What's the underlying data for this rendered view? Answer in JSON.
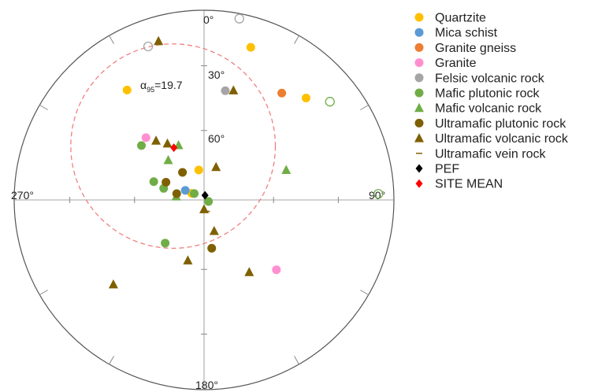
{
  "chart_data": {
    "type": "scatter",
    "projection": "equal-area stereonet",
    "axis_labels": {
      "north": "0°",
      "east": "90°",
      "south": "180°",
      "west": "270°",
      "inc30": "30°",
      "inc60": "60°"
    },
    "alpha95": {
      "symbol": "α",
      "sub": "95",
      "text": "=19.7",
      "value": 19.7
    },
    "colors": {
      "circle": "#555555",
      "ticks": "#888888",
      "alpha95_ring": "#f08080",
      "yellow": "#ffc000",
      "blue": "#5b9bd5",
      "orange": "#ed7d31",
      "pink": "#ff8fd0",
      "gray": "#a5a5a5",
      "green": "#70ad47",
      "brown": "#7f6000",
      "black": "#000000",
      "red": "#ff0000"
    },
    "series": [
      {
        "name": "Quartzite",
        "marker": "circle",
        "color": "#ffc000",
        "points": [
          [
            17,
            17
          ],
          [
            45,
            25
          ],
          [
            325,
            30
          ],
          [
            298,
            84
          ],
          [
            350,
            77
          ]
        ]
      },
      {
        "name": "Mica schist",
        "marker": "circle",
        "color": "#5b9bd5",
        "points": [
          [
            297,
            81
          ]
        ]
      },
      {
        "name": "Granite gneiss",
        "marker": "circle",
        "color": "#ed7d31",
        "points": [
          [
            36,
            31
          ]
        ]
      },
      {
        "name": "Granite",
        "marker": "circle",
        "color": "#ff8fd0",
        "points": [
          [
            317,
            53
          ],
          [
            134,
            46
          ]
        ]
      },
      {
        "name": "Felsic volcanic rock",
        "marker": "circle",
        "color": "#a5a5a5",
        "points": [
          [
            11,
            41
          ]
        ],
        "open_points": [
          [
            340,
            15
          ],
          [
            11,
            3
          ]
        ]
      },
      {
        "name": "Mafic plutonic rock",
        "marker": "circle",
        "color": "#70ad47",
        "points": [
          [
            290,
            67
          ],
          [
            286,
            72
          ],
          [
            303,
            85
          ],
          [
            311,
            54
          ],
          [
            289,
            92
          ],
          [
            222,
            65
          ]
        ],
        "open_points": [
          [
            52,
            17
          ],
          [
            88,
            9
          ]
        ]
      },
      {
        "name": "Mafic volcanic rock",
        "marker": "triangle",
        "color": "#70ad47",
        "points": [
          [
            70,
            52
          ],
          [
            335,
            64
          ],
          [
            277,
            78
          ],
          [
            318,
            67
          ]
        ]
      },
      {
        "name": "Ultramafic plutonic rock",
        "marker": "circle",
        "color": "#7f6000",
        "points": [
          [
            295,
            72
          ],
          [
            283,
            78
          ],
          [
            322,
            75
          ],
          [
            171,
            69
          ]
        ]
      },
      {
        "name": "Ultramafic volcanic rock",
        "marker": "triangle",
        "color": "#7f6000",
        "points": [
          [
            15,
            40
          ],
          [
            344,
            14
          ],
          [
            20,
            75
          ],
          [
            327,
            61
          ],
          [
            321,
            57
          ],
          [
            180,
            86
          ],
          [
            162,
            76
          ],
          [
            227,
            35
          ],
          [
            148,
            53
          ],
          [
            195,
            63
          ]
        ]
      },
      {
        "name": "Ultramafic vein rock",
        "marker": "dash",
        "color": "#7f6000",
        "points": [
          [
            167,
            85
          ]
        ]
      },
      {
        "name": "PEF",
        "marker": "diamond",
        "color": "#000000",
        "points": [
          [
            12,
            88
          ]
        ]
      },
      {
        "name": "SITE MEAN",
        "marker": "diamond",
        "color": "#ff0000",
        "points": [
          [
            330,
            64
          ]
        ]
      }
    ]
  }
}
